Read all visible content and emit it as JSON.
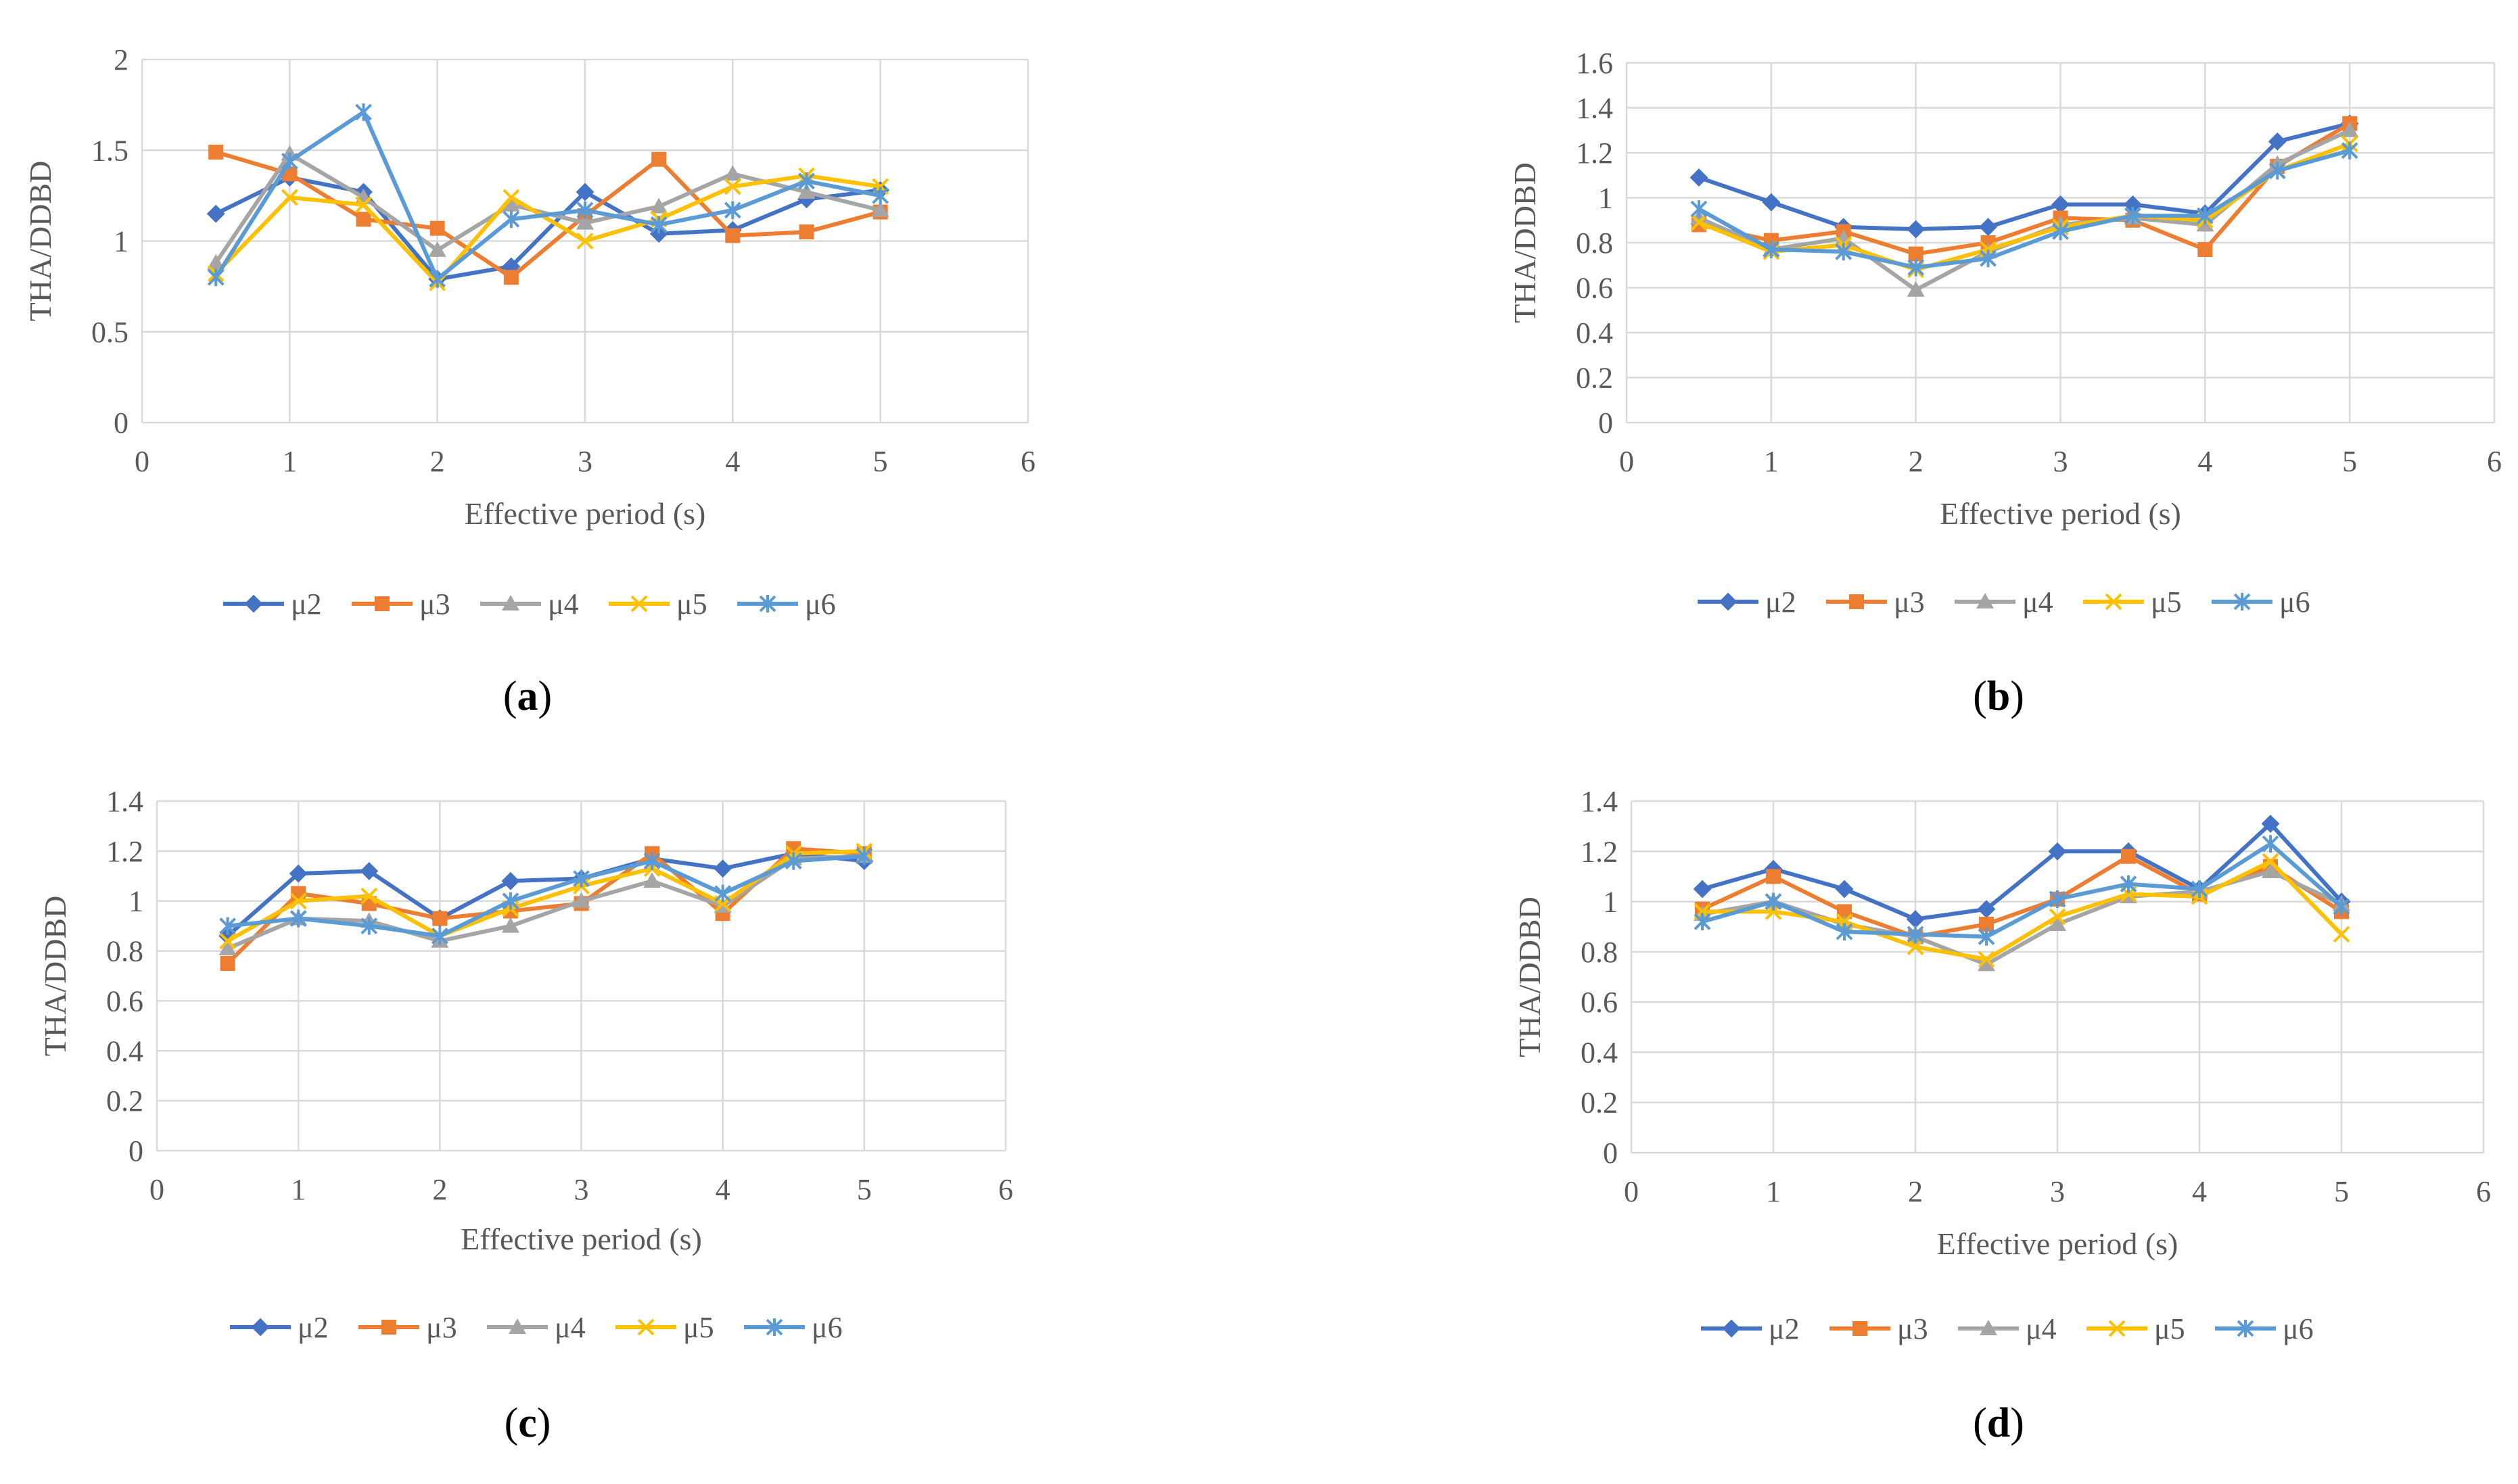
{
  "colors": {
    "mu2": "#4472C4",
    "mu3": "#ED7D31",
    "mu4": "#A5A5A5",
    "mu5": "#FFC000",
    "mu6": "#5B9BD5",
    "grid": "#D9D9D9",
    "axis_text": "#595959"
  },
  "chart_data": [
    {
      "type": "line",
      "panel_label": "(a)",
      "panel_letter": "a",
      "xlabel": "Effective period (s)",
      "ylabel": "THA/DDBD",
      "xlim": [
        0,
        6
      ],
      "ylim": [
        0,
        2
      ],
      "xticks": [
        "0",
        "1",
        "2",
        "3",
        "4",
        "5",
        "6"
      ],
      "yticks": [
        "0",
        "0.5",
        "1",
        "1.5",
        "2"
      ],
      "x": [
        0.5,
        1,
        1.5,
        2,
        2.5,
        3,
        3.5,
        4,
        4.5,
        5
      ],
      "series": [
        {
          "name": "μ2",
          "key": "mu2",
          "marker": "diamond",
          "values": [
            1.15,
            1.35,
            1.27,
            0.79,
            0.86,
            1.27,
            1.04,
            1.06,
            1.23,
            1.28
          ]
        },
        {
          "name": "μ3",
          "key": "mu3",
          "marker": "square",
          "values": [
            1.49,
            1.37,
            1.12,
            1.07,
            0.8,
            1.14,
            1.45,
            1.03,
            1.05,
            1.16
          ]
        },
        {
          "name": "μ4",
          "key": "mu4",
          "marker": "triangle",
          "values": [
            0.88,
            1.48,
            1.24,
            0.95,
            1.2,
            1.1,
            1.19,
            1.37,
            1.27,
            1.17
          ]
        },
        {
          "name": "μ5",
          "key": "mu5",
          "marker": "x",
          "values": [
            0.82,
            1.24,
            1.2,
            0.77,
            1.24,
            1.0,
            1.12,
            1.3,
            1.36,
            1.3
          ]
        },
        {
          "name": "μ6",
          "key": "mu6",
          "marker": "star",
          "values": [
            0.8,
            1.44,
            1.71,
            0.79,
            1.12,
            1.17,
            1.09,
            1.17,
            1.33,
            1.25
          ]
        }
      ]
    },
    {
      "type": "line",
      "panel_label": "(b)",
      "panel_letter": "b",
      "xlabel": "Effective period (s)",
      "ylabel": "THA/DDBD",
      "xlim": [
        0,
        6
      ],
      "ylim": [
        0,
        1.6
      ],
      "xticks": [
        "0",
        "1",
        "2",
        "3",
        "4",
        "5",
        "6"
      ],
      "yticks": [
        "0",
        "0.2",
        "0.4",
        "0.6",
        "0.8",
        "1",
        "1.2",
        "1.4",
        "1.6"
      ],
      "x": [
        0.5,
        1,
        1.5,
        2,
        2.5,
        3,
        3.5,
        4,
        4.5,
        5
      ],
      "series": [
        {
          "name": "μ2",
          "key": "mu2",
          "marker": "diamond",
          "values": [
            1.09,
            0.98,
            0.87,
            0.86,
            0.87,
            0.97,
            0.97,
            0.93,
            1.25,
            1.33
          ]
        },
        {
          "name": "μ3",
          "key": "mu3",
          "marker": "square",
          "values": [
            0.88,
            0.81,
            0.85,
            0.75,
            0.8,
            0.91,
            0.9,
            0.77,
            1.14,
            1.33
          ]
        },
        {
          "name": "μ4",
          "key": "mu4",
          "marker": "triangle",
          "values": [
            0.91,
            0.77,
            0.82,
            0.59,
            0.76,
            0.88,
            0.91,
            0.88,
            1.15,
            1.3
          ]
        },
        {
          "name": "μ5",
          "key": "mu5",
          "marker": "x",
          "values": [
            0.89,
            0.76,
            0.79,
            0.68,
            0.77,
            0.87,
            0.92,
            0.9,
            1.12,
            1.24
          ]
        },
        {
          "name": "μ6",
          "key": "mu6",
          "marker": "star",
          "values": [
            0.95,
            0.77,
            0.76,
            0.69,
            0.73,
            0.85,
            0.92,
            0.92,
            1.12,
            1.21
          ]
        }
      ]
    },
    {
      "type": "line",
      "panel_label": "(c)",
      "panel_letter": "c",
      "xlabel": "Effective period (s)",
      "ylabel": "THA/DDBD",
      "xlim": [
        0,
        6
      ],
      "ylim": [
        0,
        1.4
      ],
      "xticks": [
        "0",
        "1",
        "2",
        "3",
        "4",
        "5",
        "6"
      ],
      "yticks": [
        "0",
        "0.2",
        "0.4",
        "0.6",
        "0.8",
        "1",
        "1.2",
        "1.4"
      ],
      "x": [
        0.5,
        1,
        1.5,
        2,
        2.5,
        3,
        3.5,
        4,
        4.5,
        5
      ],
      "series": [
        {
          "name": "μ2",
          "key": "mu2",
          "marker": "diamond",
          "values": [
            0.86,
            1.11,
            1.12,
            0.93,
            1.08,
            1.09,
            1.17,
            1.13,
            1.19,
            1.16
          ]
        },
        {
          "name": "μ3",
          "key": "mu3",
          "marker": "square",
          "values": [
            0.75,
            1.03,
            0.99,
            0.93,
            0.96,
            0.99,
            1.19,
            0.95,
            1.21,
            1.19
          ]
        },
        {
          "name": "μ4",
          "key": "mu4",
          "marker": "triangle",
          "values": [
            0.81,
            0.93,
            0.92,
            0.84,
            0.9,
            1.0,
            1.08,
            0.98,
            1.17,
            1.18
          ]
        },
        {
          "name": "μ5",
          "key": "mu5",
          "marker": "x",
          "values": [
            0.84,
            1.0,
            1.02,
            0.86,
            0.97,
            1.06,
            1.13,
            0.99,
            1.19,
            1.2
          ]
        },
        {
          "name": "μ6",
          "key": "mu6",
          "marker": "star",
          "values": [
            0.9,
            0.93,
            0.9,
            0.86,
            1.0,
            1.09,
            1.16,
            1.03,
            1.16,
            1.18
          ]
        }
      ]
    },
    {
      "type": "line",
      "panel_label": "(d)",
      "panel_letter": "d",
      "xlabel": "Effective period (s)",
      "ylabel": "THA/DDBD",
      "xlim": [
        0,
        6
      ],
      "ylim": [
        0,
        1.4
      ],
      "xticks": [
        "0",
        "1",
        "2",
        "3",
        "4",
        "5",
        "6"
      ],
      "yticks": [
        "0",
        "0.2",
        "0.4",
        "0.6",
        "0.8",
        "1",
        "1.2",
        "1.4"
      ],
      "x": [
        0.5,
        1,
        1.5,
        2,
        2.5,
        3,
        3.5,
        4,
        4.5,
        5
      ],
      "series": [
        {
          "name": "μ2",
          "key": "mu2",
          "marker": "diamond",
          "values": [
            1.05,
            1.13,
            1.05,
            0.93,
            0.97,
            1.2,
            1.2,
            1.05,
            1.31,
            1.0
          ]
        },
        {
          "name": "μ3",
          "key": "mu3",
          "marker": "square",
          "values": [
            0.97,
            1.1,
            0.96,
            0.86,
            0.91,
            1.01,
            1.18,
            1.03,
            1.14,
            0.96
          ]
        },
        {
          "name": "μ4",
          "key": "mu4",
          "marker": "triangle",
          "values": [
            0.95,
            1.0,
            0.91,
            0.86,
            0.75,
            0.91,
            1.02,
            1.04,
            1.12,
            0.99
          ]
        },
        {
          "name": "μ5",
          "key": "mu5",
          "marker": "x",
          "values": [
            0.96,
            0.96,
            0.92,
            0.82,
            0.77,
            0.94,
            1.03,
            1.02,
            1.16,
            0.87
          ]
        },
        {
          "name": "μ6",
          "key": "mu6",
          "marker": "star",
          "values": [
            0.92,
            1.0,
            0.88,
            0.87,
            0.86,
            1.01,
            1.07,
            1.05,
            1.23,
            0.98
          ]
        }
      ]
    }
  ]
}
